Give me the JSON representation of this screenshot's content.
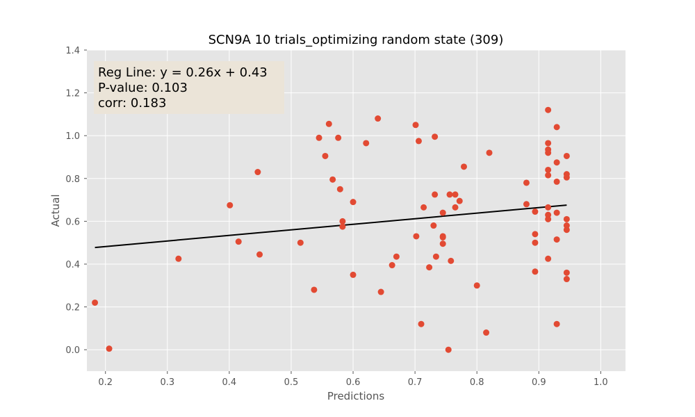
{
  "chart_data": {
    "type": "scatter",
    "title": "SCN9A 10 trials_optimizing random state (309)",
    "xlabel": "Predictions",
    "ylabel": "Actual",
    "xlim": [
      0.17,
      1.04
    ],
    "ylim": [
      -0.1,
      1.4
    ],
    "xticks": [
      "0.2",
      "0.3",
      "0.4",
      "0.5",
      "0.6",
      "0.7",
      "0.8",
      "0.9",
      "1.0"
    ],
    "yticks": [
      "0.0",
      "0.2",
      "0.4",
      "0.6",
      "0.8",
      "1.0",
      "1.2",
      "1.4"
    ],
    "grid": true,
    "annotation": [
      "Reg Line: y = 0.26x + 0.43",
      "P-value: 0.103",
      "corr: 0.183"
    ],
    "regression": {
      "slope": 0.26,
      "intercept": 0.43,
      "x_range": [
        0.183,
        0.945
      ]
    },
    "colors": {
      "points": "#e24a33",
      "line": "#000000",
      "background": "#e5e5e5",
      "annotation_box": "#ebe4d8"
    },
    "points": [
      [
        0.183,
        0.22
      ],
      [
        0.206,
        0.005
      ],
      [
        0.318,
        0.425
      ],
      [
        0.401,
        0.675
      ],
      [
        0.415,
        0.505
      ],
      [
        0.446,
        0.83
      ],
      [
        0.449,
        0.445
      ],
      [
        0.515,
        0.5
      ],
      [
        0.537,
        0.28
      ],
      [
        0.545,
        0.99
      ],
      [
        0.555,
        0.905
      ],
      [
        0.561,
        1.055
      ],
      [
        0.567,
        0.795
      ],
      [
        0.576,
        0.99
      ],
      [
        0.579,
        0.75
      ],
      [
        0.583,
        0.6
      ],
      [
        0.583,
        0.575
      ],
      [
        0.6,
        0.69
      ],
      [
        0.6,
        0.35
      ],
      [
        0.621,
        0.965
      ],
      [
        0.64,
        1.08
      ],
      [
        0.645,
        0.27
      ],
      [
        0.663,
        0.395
      ],
      [
        0.67,
        0.435
      ],
      [
        0.701,
        1.05
      ],
      [
        0.702,
        0.53
      ],
      [
        0.706,
        0.975
      ],
      [
        0.71,
        0.12
      ],
      [
        0.714,
        0.665
      ],
      [
        0.723,
        0.385
      ],
      [
        0.73,
        0.58
      ],
      [
        0.732,
        0.995
      ],
      [
        0.732,
        0.725
      ],
      [
        0.734,
        0.435
      ],
      [
        0.745,
        0.64
      ],
      [
        0.745,
        0.53
      ],
      [
        0.745,
        0.525
      ],
      [
        0.745,
        0.495
      ],
      [
        0.754,
        0.0
      ],
      [
        0.756,
        0.725
      ],
      [
        0.758,
        0.415
      ],
      [
        0.765,
        0.725
      ],
      [
        0.765,
        0.665
      ],
      [
        0.772,
        0.695
      ],
      [
        0.779,
        0.855
      ],
      [
        0.8,
        0.3
      ],
      [
        0.815,
        0.08
      ],
      [
        0.82,
        0.92
      ],
      [
        0.88,
        0.78
      ],
      [
        0.88,
        0.68
      ],
      [
        0.894,
        0.645
      ],
      [
        0.894,
        0.54
      ],
      [
        0.894,
        0.5
      ],
      [
        0.894,
        0.365
      ],
      [
        0.915,
        1.12
      ],
      [
        0.915,
        0.965
      ],
      [
        0.915,
        0.935
      ],
      [
        0.915,
        0.92
      ],
      [
        0.915,
        0.84
      ],
      [
        0.915,
        0.815
      ],
      [
        0.915,
        0.665
      ],
      [
        0.915,
        0.63
      ],
      [
        0.915,
        0.61
      ],
      [
        0.915,
        0.425
      ],
      [
        0.929,
        1.04
      ],
      [
        0.929,
        0.875
      ],
      [
        0.929,
        0.785
      ],
      [
        0.929,
        0.64
      ],
      [
        0.929,
        0.515
      ],
      [
        0.929,
        0.12
      ],
      [
        0.945,
        0.905
      ],
      [
        0.945,
        0.82
      ],
      [
        0.945,
        0.805
      ],
      [
        0.945,
        0.61
      ],
      [
        0.945,
        0.58
      ],
      [
        0.945,
        0.56
      ],
      [
        0.945,
        0.36
      ],
      [
        0.945,
        0.33
      ]
    ]
  }
}
